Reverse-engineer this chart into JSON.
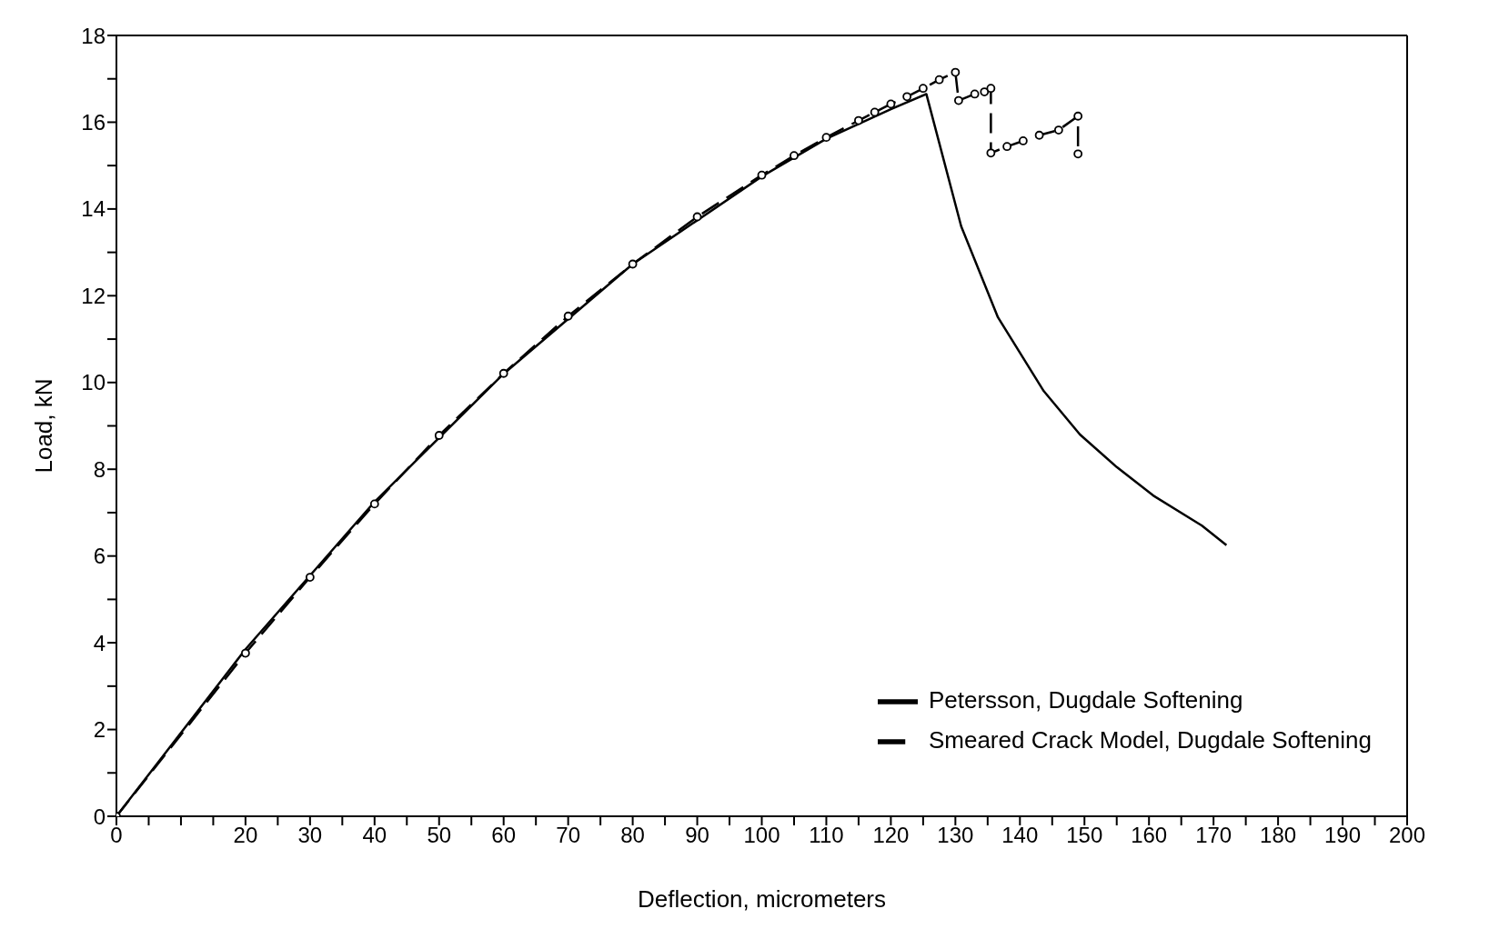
{
  "chart_data": {
    "type": "line",
    "xlabel": "Deflection, micrometers",
    "ylabel": "Load, kN",
    "xlim": [
      0,
      200
    ],
    "ylim": [
      0,
      18
    ],
    "xticks": [
      0,
      {
        "value": 5,
        "label": null
      },
      {
        "value": 10,
        "label": null
      },
      {
        "value": 15,
        "label": null
      },
      20,
      {
        "value": 25,
        "label": null
      },
      30,
      {
        "value": 35,
        "label": null
      },
      40,
      {
        "value": 45,
        "label": null
      },
      50,
      {
        "value": 55,
        "label": null
      },
      60,
      {
        "value": 65,
        "label": null
      },
      70,
      {
        "value": 75,
        "label": null
      },
      80,
      {
        "value": 85,
        "label": null
      },
      90,
      {
        "value": 95,
        "label": null
      },
      100,
      {
        "value": 105,
        "label": null
      },
      110,
      {
        "value": 115,
        "label": null
      },
      120,
      {
        "value": 125,
        "label": null
      },
      130,
      {
        "value": 135,
        "label": null
      },
      140,
      {
        "value": 145,
        "label": null
      },
      150,
      {
        "value": 155,
        "label": null
      },
      160,
      {
        "value": 165,
        "label": null
      },
      170,
      {
        "value": 175,
        "label": null
      },
      180,
      {
        "value": 185,
        "label": null
      },
      190,
      {
        "value": 195,
        "label": null
      },
      200
    ],
    "yticks": [
      0,
      {
        "value": 1,
        "label": null
      },
      2,
      {
        "value": 3,
        "label": null
      },
      4,
      {
        "value": 5,
        "label": null
      },
      6,
      {
        "value": 7,
        "label": null
      },
      8,
      {
        "value": 9,
        "label": null
      },
      10,
      {
        "value": 11,
        "label": null
      },
      12,
      {
        "value": 13,
        "label": null
      },
      14,
      {
        "value": 15,
        "label": null
      },
      16,
      {
        "value": 17,
        "label": null
      },
      18
    ],
    "legend": "bottom right",
    "series": [
      {
        "name": "Petersson, Dugdale Softening",
        "color": "#000000",
        "line_style": "solid",
        "marker": "none",
        "x": [
          0,
          20,
          40,
          60,
          80,
          100,
          110,
          120,
          125.5,
          130.9,
          136.6,
          143.7,
          149.3,
          155,
          160.6,
          168.2,
          172
        ],
        "values": [
          0,
          3.85,
          7.25,
          10.2,
          12.73,
          14.75,
          15.62,
          16.3,
          16.65,
          13.6,
          11.5,
          9.8,
          8.8,
          8.05,
          7.4,
          6.7,
          6.25
        ]
      },
      {
        "name": "Smeared Crack Model, Dugdale Softening",
        "color": "#000000",
        "line_style": "dashed",
        "marker": "circle",
        "x": [
          0,
          20,
          30,
          40,
          50,
          60,
          70,
          80,
          90,
          100,
          105,
          110,
          115,
          117.5,
          120,
          122.5,
          125,
          127.5,
          130,
          130.5,
          133,
          134.5,
          135.5,
          135.5,
          138,
          140.5,
          143,
          146,
          149,
          149
        ],
        "values": [
          0,
          3.76,
          5.51,
          7.2,
          8.78,
          10.21,
          11.53,
          12.73,
          13.82,
          14.78,
          15.23,
          15.65,
          16.04,
          16.23,
          16.42,
          16.59,
          16.78,
          16.98,
          17.15,
          16.5,
          16.65,
          16.7,
          16.78,
          15.29,
          15.44,
          15.57,
          15.7,
          15.82,
          16.14,
          15.27
        ]
      }
    ]
  }
}
